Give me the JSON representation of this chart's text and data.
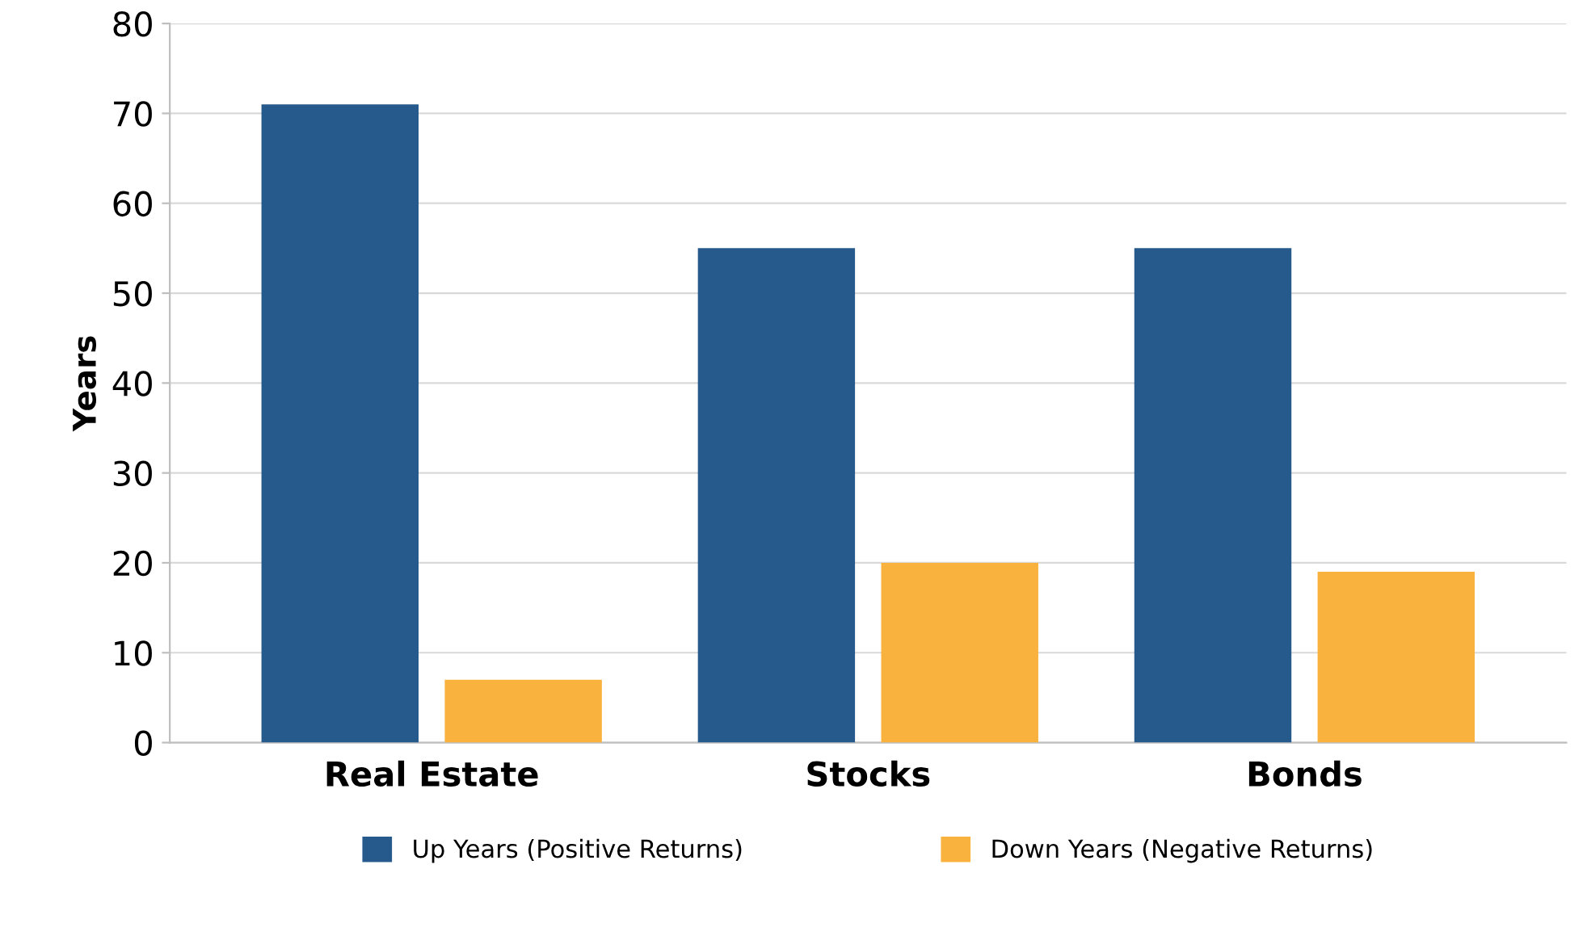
{
  "chart_data": {
    "type": "bar",
    "ylabel": "Years",
    "categories": [
      "Real Estate",
      "Stocks",
      "Bonds"
    ],
    "series": [
      {
        "name": "Up Years (Positive Returns)",
        "color": "#275a8c",
        "values": [
          71,
          55,
          55
        ]
      },
      {
        "name": "Down Years (Negative Returns)",
        "color": "#f9b23d",
        "values": [
          7,
          20,
          19
        ]
      }
    ],
    "ylim": [
      0,
      80
    ],
    "yticks": [
      0,
      10,
      20,
      30,
      40,
      50,
      60,
      70,
      80
    ],
    "grid": "y",
    "legend": "bottom"
  }
}
